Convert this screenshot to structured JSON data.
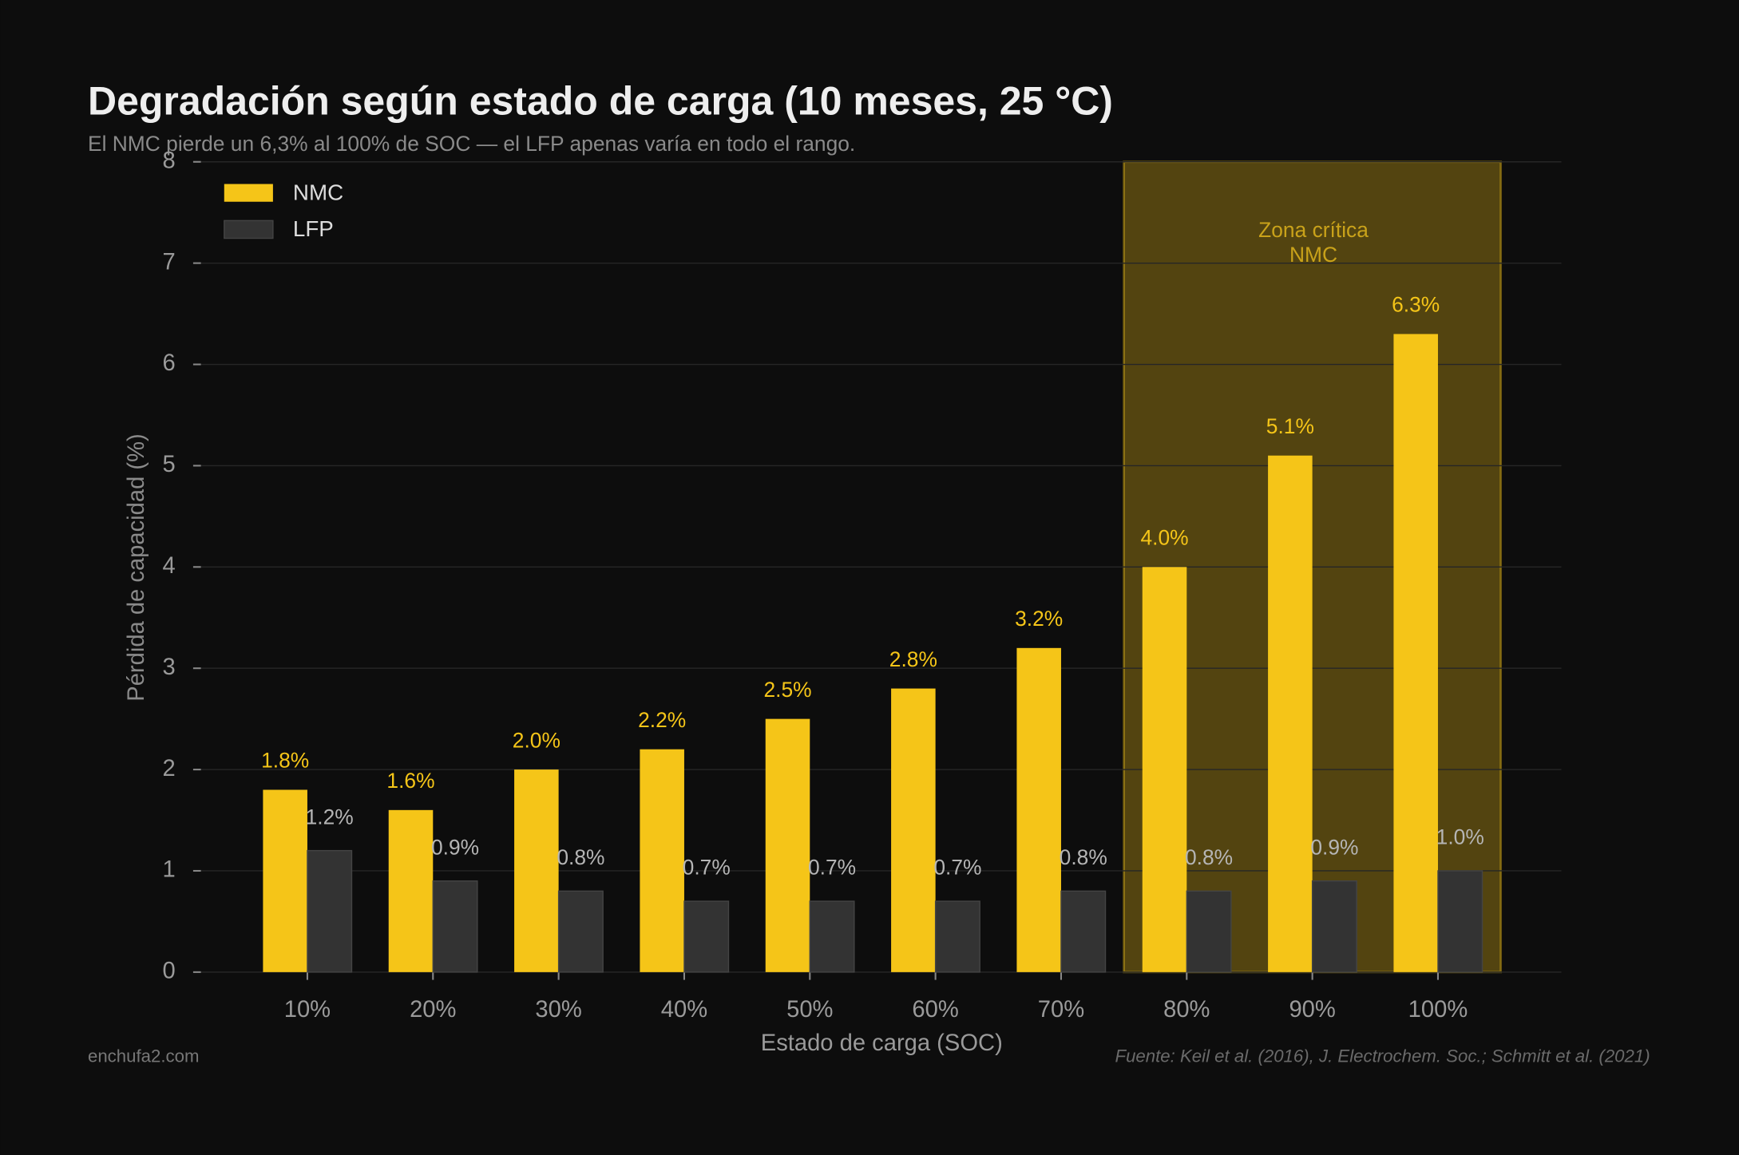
{
  "chart_data": {
    "type": "bar",
    "title": "Degradación según estado de carga (10 meses, 25 °C)",
    "subtitle": "El NMC pierde un 6,3% al 100% de SOC — el LFP apenas varía en todo el rango.",
    "x_label": "Estado de carga (SOC)",
    "y_label": "Pérdida de capacidad (%)",
    "categories": [
      "10%",
      "20%",
      "30%",
      "40%",
      "50%",
      "60%",
      "70%",
      "80%",
      "90%",
      "100%"
    ],
    "series": [
      {
        "name": "NMC",
        "color": "#f5c518",
        "values": [
          1.8,
          1.6,
          2.0,
          2.2,
          2.5,
          2.8,
          3.2,
          4.0,
          5.1,
          6.3
        ],
        "value_labels": [
          "1.8%",
          "1.6%",
          "2.0%",
          "2.2%",
          "2.5%",
          "2.8%",
          "3.2%",
          "4.0%",
          "5.1%",
          "6.3%"
        ]
      },
      {
        "name": "LFP",
        "color": "#333333",
        "values": [
          1.2,
          0.9,
          0.8,
          0.7,
          0.7,
          0.7,
          0.8,
          0.8,
          0.9,
          1.0
        ],
        "value_labels": [
          "1.2%",
          "0.9%",
          "0.8%",
          "0.7%",
          "0.7%",
          "0.7%",
          "0.8%",
          "0.8%",
          "0.9%",
          "1.0%"
        ]
      }
    ],
    "ylim": [
      0,
      8
    ],
    "yticks": [
      0,
      1,
      2,
      3,
      4,
      5,
      6,
      7,
      8
    ],
    "grid": true,
    "legend": "upper left",
    "annotation": {
      "lines": [
        "Zona crítica",
        "NMC"
      ],
      "span": [
        "80%",
        "100%"
      ]
    },
    "footer_left": "enchufa2.com",
    "footer_right": "Fuente: Keil et al. (2016), J. Electrochem. Soc.; Schmitt et al. (2021)"
  }
}
